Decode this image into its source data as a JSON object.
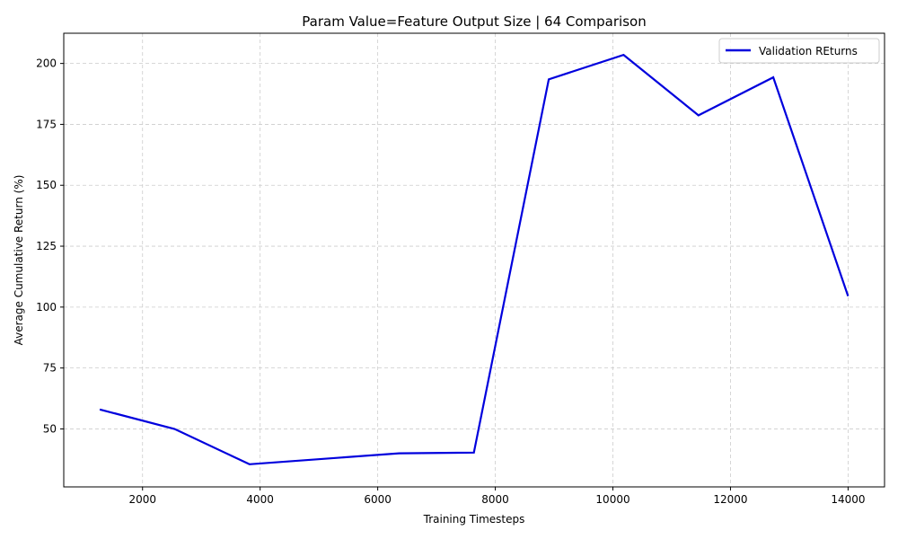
{
  "chart_data": {
    "type": "line",
    "title": "Param Value=Feature Output Size | 64 Comparison",
    "xlabel": "Training Timesteps",
    "ylabel": "Average Cumulative Return (%)",
    "xlim": [
      660,
      14620
    ],
    "ylim": [
      26.2,
      212.4
    ],
    "xticks": [
      2000,
      4000,
      6000,
      8000,
      10000,
      12000,
      14000
    ],
    "yticks": [
      50,
      75,
      100,
      125,
      150,
      175,
      200
    ],
    "grid": true,
    "legend_position": "top-right",
    "series": [
      {
        "name": "Validation REturns",
        "color": "#0000dd",
        "x": [
          1273,
          2545,
          3818,
          6364,
          7636,
          8909,
          10182,
          11455,
          12727,
          14000
        ],
        "y": [
          58,
          50,
          35.5,
          40,
          40.3,
          193.5,
          203.5,
          178.7,
          194.3,
          104.5
        ]
      }
    ]
  }
}
